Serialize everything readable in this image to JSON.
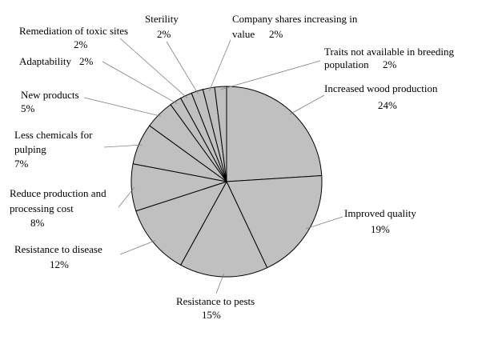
{
  "chart_data": {
    "type": "pie",
    "title": "",
    "start_angle_deg": 0,
    "direction": "clockwise",
    "fill_color": "#c0c0c0",
    "stroke_color": "#000000",
    "leader_color": "#808080",
    "slices": [
      {
        "label": "Increased wood production",
        "value": 24,
        "value_label": "24%"
      },
      {
        "label": "Improved quality",
        "value": 19,
        "value_label": "19%"
      },
      {
        "label": "Resistance to pests",
        "value": 15,
        "value_label": "15%"
      },
      {
        "label": "Resistance to disease",
        "value": 12,
        "value_label": "12%"
      },
      {
        "label": "Reduce production and processing cost",
        "value": 8,
        "value_label": "8%"
      },
      {
        "label": "Less chemicals for pulping",
        "value": 7,
        "value_label": "7%"
      },
      {
        "label": "New products",
        "value": 5,
        "value_label": "5%"
      },
      {
        "label": "Adaptability",
        "value": 2,
        "value_label": "2%"
      },
      {
        "label": "Remediation of toxic sites",
        "value": 2,
        "value_label": "2%"
      },
      {
        "label": "Sterility",
        "value": 2,
        "value_label": "2%"
      },
      {
        "label": "Company shares increasing in value",
        "value": 2,
        "value_label": "2%"
      },
      {
        "label": "Traits not available in breeding population",
        "value": 2,
        "value_label": "2%"
      }
    ]
  }
}
